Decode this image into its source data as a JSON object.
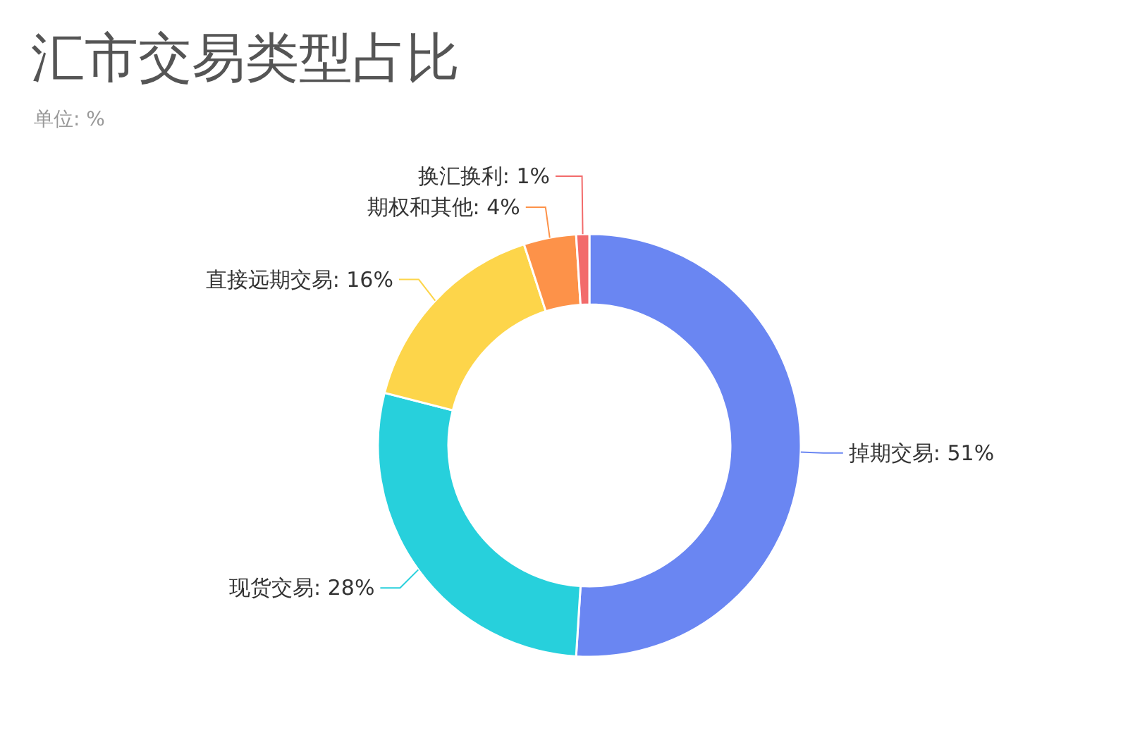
{
  "chart_data": {
    "type": "donut",
    "title": "汇市交易类型占比",
    "subtitle": "单位: %",
    "categories": [
      "掉期交易",
      "现货交易",
      "直接远期交易",
      "期权和其他",
      "换汇换利"
    ],
    "values": [
      51,
      28,
      16,
      4,
      1
    ],
    "value_labels": [
      "51%",
      "28%",
      "16%",
      "4%",
      "1%"
    ],
    "colors": [
      "#6a86f2",
      "#27d0dc",
      "#fdd54a",
      "#fd9249",
      "#f26b6b"
    ]
  }
}
